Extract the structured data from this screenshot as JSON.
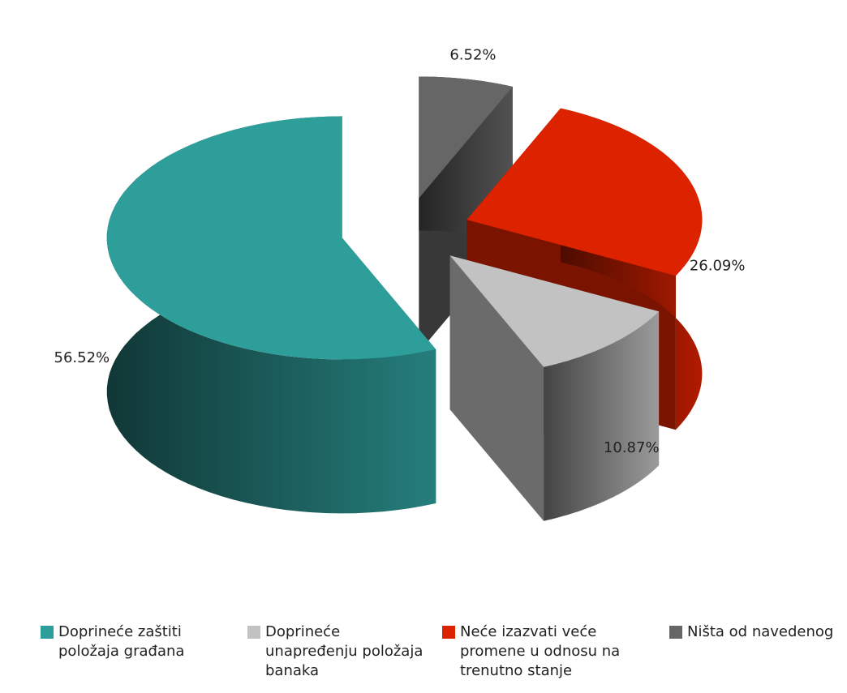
{
  "chart_data": {
    "type": "pie3d",
    "categories": [
      "Doprineće zaštiti položaja građana",
      "Doprineće unapređenju položaja banaka",
      "Neće izazvati veće promene u odnosu na trenutno stanje",
      "Ništa od navedenog"
    ],
    "values": [
      56.52,
      10.87,
      26.09,
      6.52
    ],
    "value_labels": [
      "56.52%",
      "10.87%",
      "26.09%",
      "6.52%"
    ],
    "colors": [
      "#2e9e9a",
      "#c2c2c2",
      "#dd2200",
      "#666666"
    ],
    "legend": "bottom"
  }
}
